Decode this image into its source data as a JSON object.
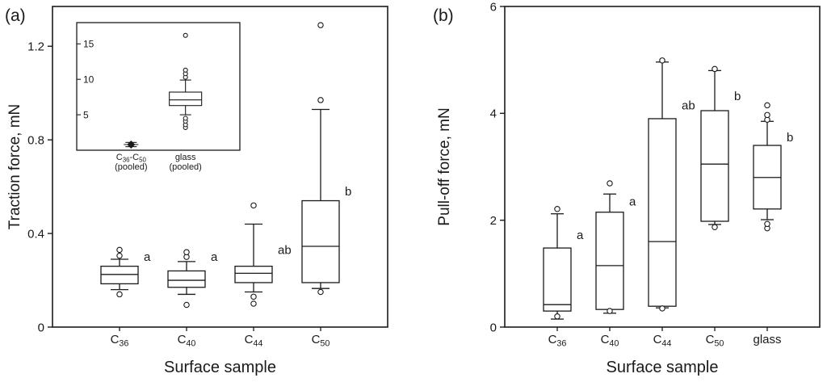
{
  "figure": {
    "background": "#ffffff",
    "ink_color": "#1a1a1a"
  },
  "chart_data": [
    {
      "type": "box",
      "panel_label": "(a)",
      "xlabel": "Surface sample",
      "ylabel": "Traction force, mN",
      "ylim": [
        0,
        1.37
      ],
      "yticks": [
        {
          "v": 0,
          "label": "0"
        },
        {
          "v": 0.4,
          "label": "0.4"
        },
        {
          "v": 0.8,
          "label": "0.8"
        },
        {
          "v": 1.2,
          "label": "1.2"
        }
      ],
      "series": [
        {
          "name": "C36",
          "label": [
            {
              "t": "C"
            },
            {
              "t": "36",
              "sub": true
            }
          ],
          "q1": 0.185,
          "median": 0.225,
          "q3": 0.26,
          "whisker_low": 0.16,
          "whisker_high": 0.29,
          "outliers": [
            0.14,
            0.305,
            0.33
          ],
          "sig": "a",
          "sig_y": 0.3
        },
        {
          "name": "C40",
          "label": [
            {
              "t": "C"
            },
            {
              "t": "40",
              "sub": true
            }
          ],
          "q1": 0.17,
          "median": 0.2,
          "q3": 0.24,
          "whisker_low": 0.14,
          "whisker_high": 0.28,
          "outliers": [
            0.095,
            0.3,
            0.32
          ],
          "sig": "a",
          "sig_y": 0.3
        },
        {
          "name": "C44",
          "label": [
            {
              "t": "C"
            },
            {
              "t": "44",
              "sub": true
            }
          ],
          "q1": 0.19,
          "median": 0.23,
          "q3": 0.26,
          "whisker_low": 0.15,
          "whisker_high": 0.44,
          "outliers": [
            0.1,
            0.13,
            0.52
          ],
          "sig": "ab",
          "sig_y": 0.33
        },
        {
          "name": "C50",
          "label": [
            {
              "t": "C"
            },
            {
              "t": "50",
              "sub": true
            }
          ],
          "q1": 0.19,
          "median": 0.345,
          "q3": 0.54,
          "whisker_low": 0.165,
          "whisker_high": 0.93,
          "outliers": [
            0.15,
            0.97,
            1.29
          ],
          "sig": "b",
          "sig_y": 0.58
        }
      ],
      "inset": {
        "type": "box",
        "ylim": [
          0,
          18
        ],
        "yticks": [
          {
            "v": 5,
            "label": "5"
          },
          {
            "v": 10,
            "label": "10"
          },
          {
            "v": 15,
            "label": "15"
          }
        ],
        "series": [
          {
            "name": "C36-C50 pooled",
            "label": [
              {
                "t": "C"
              },
              {
                "t": "36",
                "sub": true
              },
              {
                "t": "-C"
              },
              {
                "t": "50",
                "sub": true
              }
            ],
            "label2": "(pooled)",
            "marker": "diamond",
            "q1": 0.6,
            "median": 0.8,
            "q3": 1.0,
            "whisker_low": 0.5,
            "whisker_high": 1.1,
            "outliers": []
          },
          {
            "name": "glass pooled",
            "label": [
              {
                "t": "glass"
              }
            ],
            "label2": "(pooled)",
            "q1": 6.3,
            "median": 7.1,
            "q3": 8.2,
            "whisker_low": 5.0,
            "whisker_high": 9.9,
            "outliers": [
              3.2,
              3.6,
              4.1,
              4.5,
              10.3,
              10.8,
              11.3,
              16.2
            ]
          }
        ]
      }
    },
    {
      "type": "box",
      "panel_label": "(b)",
      "xlabel": "Surface sample",
      "ylabel": "Pull-off force, mN",
      "ylim": [
        0,
        6
      ],
      "yticks": [
        {
          "v": 0,
          "label": "0"
        },
        {
          "v": 2,
          "label": "2"
        },
        {
          "v": 4,
          "label": "4"
        },
        {
          "v": 6,
          "label": "6"
        }
      ],
      "series": [
        {
          "name": "C36",
          "label": [
            {
              "t": "C"
            },
            {
              "t": "36",
              "sub": true
            }
          ],
          "q1": 0.3,
          "median": 0.42,
          "q3": 1.48,
          "whisker_low": 0.15,
          "whisker_high": 2.12,
          "outliers": [
            0.2,
            2.21
          ],
          "sig": "a",
          "sig_y": 1.72
        },
        {
          "name": "C40",
          "label": [
            {
              "t": "C"
            },
            {
              "t": "40",
              "sub": true
            }
          ],
          "q1": 0.33,
          "median": 1.15,
          "q3": 2.15,
          "whisker_low": 0.26,
          "whisker_high": 2.49,
          "outliers": [
            0.3,
            2.69
          ],
          "sig": "a",
          "sig_y": 2.35
        },
        {
          "name": "C44",
          "label": [
            {
              "t": "C"
            },
            {
              "t": "44",
              "sub": true
            }
          ],
          "q1": 0.39,
          "median": 1.6,
          "q3": 3.9,
          "whisker_low": 0.36,
          "whisker_high": 4.96,
          "outliers": [
            0.35,
            4.99
          ],
          "sig": "ab",
          "sig_y": 4.15
        },
        {
          "name": "C50",
          "label": [
            {
              "t": "C"
            },
            {
              "t": "50",
              "sub": true
            }
          ],
          "q1": 1.98,
          "median": 3.05,
          "q3": 4.05,
          "whisker_low": 1.92,
          "whisker_high": 4.8,
          "outliers": [
            1.87,
            4.83
          ],
          "sig": "b",
          "sig_y": 4.32
        },
        {
          "name": "glass",
          "label": [
            {
              "t": "glass"
            }
          ],
          "q1": 2.21,
          "median": 2.8,
          "q3": 3.4,
          "whisker_low": 2.01,
          "whisker_high": 3.85,
          "outliers": [
            1.85,
            1.93,
            3.88,
            3.97,
            4.15
          ],
          "sig": "b",
          "sig_y": 3.55
        }
      ]
    }
  ]
}
